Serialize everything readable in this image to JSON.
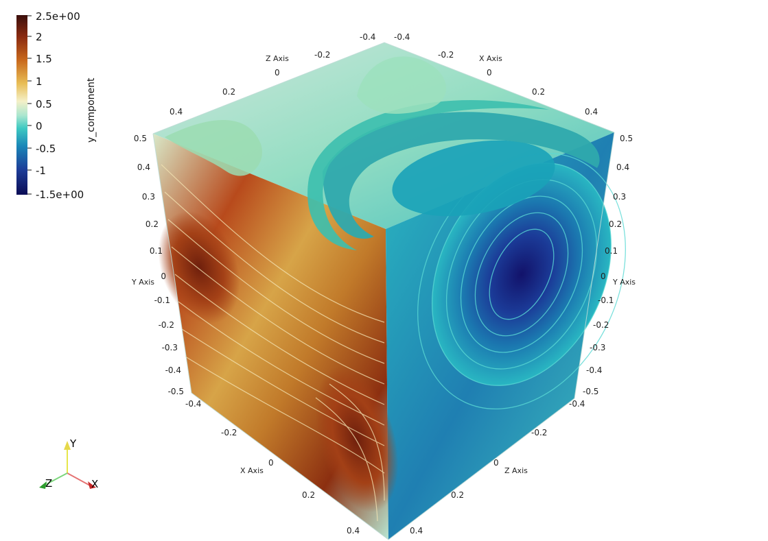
{
  "colorbar": {
    "title": "y_component",
    "labels": [
      "2.5e+00",
      "2",
      "1.5",
      "1",
      "0.5",
      "0",
      "-0.5",
      "-1",
      "-1.5e+00"
    ]
  },
  "axes": {
    "titles": {
      "z_top": "Z Axis",
      "x_top": "X Axis",
      "y_left": "Y Axis",
      "y_right": "Y Axis",
      "x_bottom": "X Axis",
      "z_bottom": "Z Axis"
    },
    "top_left_ticks": [
      "-0.4",
      "-0.2",
      "0",
      "0.2",
      "0.4"
    ],
    "top_right_ticks": [
      "-0.4",
      "-0.2",
      "0",
      "0.2",
      "0.4"
    ],
    "left_ticks": [
      "0.5",
      "0.4",
      "0.3",
      "0.2",
      "0.1",
      "0",
      "-0.1",
      "-0.2",
      "-0.3",
      "-0.4",
      "-0.5"
    ],
    "right_ticks": [
      "0.5",
      "0.4",
      "0.3",
      "0.2",
      "0.1",
      "0",
      "-0.1",
      "-0.2",
      "-0.3",
      "-0.4",
      "-0.5"
    ],
    "bottom_left_ticks": [
      "-0.4",
      "-0.2",
      "0",
      "0.2",
      "0.4"
    ],
    "bottom_right_ticks": [
      "-0.4",
      "-0.2",
      "0",
      "0.2",
      "0.4"
    ]
  },
  "orientation": {
    "x": "X",
    "y": "Y",
    "z": "Z"
  }
}
